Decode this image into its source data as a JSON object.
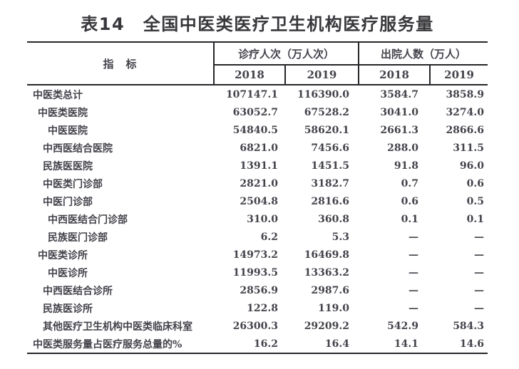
{
  "title": "表14　全国中医类医疗卫生机构医疗服务量",
  "table": {
    "indicator_header": "指　标",
    "col_groups": [
      {
        "label": "诊疗人次（万人次）",
        "sub": [
          "2018",
          "2019"
        ]
      },
      {
        "label": "出院人数（万人）",
        "sub": [
          "2018",
          "2019"
        ]
      }
    ],
    "rows": [
      {
        "label": "中医类总计",
        "indent": 0,
        "values": [
          "107147.1",
          "116390.0",
          "3584.7",
          "3858.9"
        ]
      },
      {
        "label": "中医类医院",
        "indent": 1,
        "values": [
          "63052.7",
          "67528.2",
          "3041.0",
          "3274.0"
        ]
      },
      {
        "label": "中医医院",
        "indent": 3,
        "values": [
          "54840.5",
          "58620.1",
          "2661.3",
          "2866.6"
        ]
      },
      {
        "label": "中西医结合医院",
        "indent": 2,
        "values": [
          "6821.0",
          "7456.6",
          "288.0",
          "311.5"
        ]
      },
      {
        "label": "民族医医院",
        "indent": 2,
        "values": [
          "1391.1",
          "1451.5",
          "91.8",
          "96.0"
        ]
      },
      {
        "label": "中医类门诊部",
        "indent": 2,
        "values": [
          "2821.0",
          "3182.7",
          "0.7",
          "0.6"
        ]
      },
      {
        "label": "中医门诊部",
        "indent": 2,
        "values": [
          "2504.8",
          "2816.6",
          "0.6",
          "0.5"
        ]
      },
      {
        "label": "中西医结合门诊部",
        "indent": 3,
        "values": [
          "310.0",
          "360.8",
          "0.1",
          "0.1"
        ]
      },
      {
        "label": "民族医门诊部",
        "indent": 3,
        "values": [
          "6.2",
          "5.3",
          "—",
          "—"
        ]
      },
      {
        "label": "中医类诊所",
        "indent": 1,
        "values": [
          "14973.2",
          "16469.8",
          "—",
          "—"
        ]
      },
      {
        "label": "中医诊所",
        "indent": 3,
        "values": [
          "11993.5",
          "13363.2",
          "—",
          "—"
        ]
      },
      {
        "label": "中西医结合诊所",
        "indent": 2,
        "values": [
          "2856.9",
          "2987.6",
          "—",
          "—"
        ]
      },
      {
        "label": "民族医诊所",
        "indent": 2,
        "values": [
          "122.8",
          "119.0",
          "—",
          "—"
        ]
      },
      {
        "label": "其他医疗卫生机构中医类临床科室",
        "indent": 2,
        "values": [
          "26300.3",
          "29209.2",
          "542.9",
          "584.3"
        ]
      },
      {
        "label": "中医类服务量占医疗服务总量的%",
        "indent": 0,
        "values": [
          "16.2",
          "16.4",
          "14.1",
          "14.6"
        ]
      }
    ]
  }
}
